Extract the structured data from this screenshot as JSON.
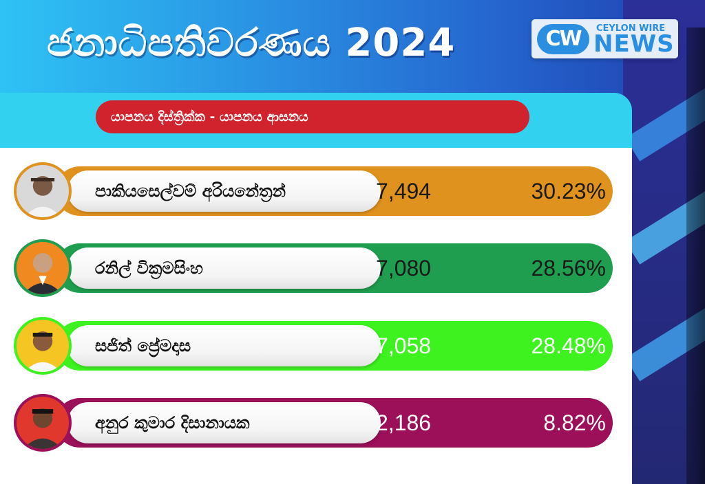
{
  "header": {
    "title": "ජනාධිපතිවරණය 2024",
    "logo_mark": "CW",
    "logo_top": "CEYLON WIRE",
    "logo_bottom": "NEWS"
  },
  "subtitle": "යාපනය දිස්ත්‍රික්ක - යාපනය ආසනය",
  "colors": {
    "header_gradient": [
      "#2ec3f5",
      "#1f3fae"
    ],
    "subtitle_bg": "#d1232d",
    "row1": "#e0921f",
    "row2": "#1f9e4f",
    "row3": "#3df21f",
    "row4": "#9c0f59"
  },
  "candidates": [
    {
      "name": "පාකියසෙල්වම් අරියනේත්‍රන්",
      "votes": "7,494",
      "percent": "30.23%",
      "percent_value": 30.23,
      "photo_icon": "candidate-photo"
    },
    {
      "name": "රනිල් වික්‍රමසිංහ",
      "votes": "7,080",
      "percent": "28.56%",
      "percent_value": 28.56,
      "photo_icon": "candidate-photo"
    },
    {
      "name": "සජිත් ප්‍රේමදාස",
      "votes": "7,058",
      "percent": "28.48%",
      "percent_value": 28.48,
      "photo_icon": "candidate-photo"
    },
    {
      "name": "අනුර කුමාර දිසානායක",
      "votes": "2,186",
      "percent": "8.82%",
      "percent_value": 8.82,
      "photo_icon": "candidate-photo"
    }
  ]
}
